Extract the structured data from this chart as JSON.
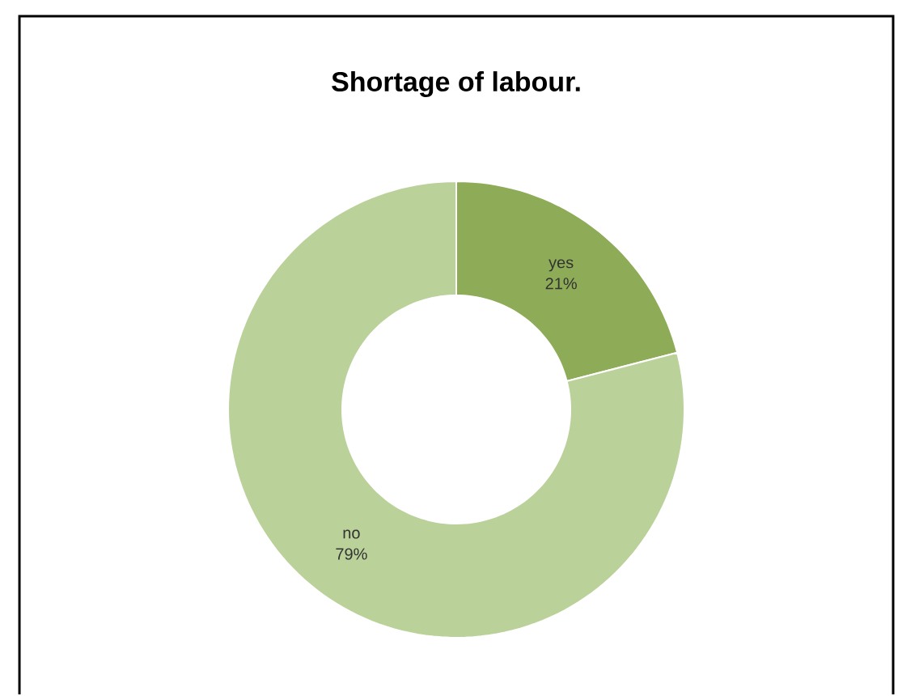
{
  "chart_data": {
    "type": "donut",
    "title": "Shortage of labour.",
    "categories": [
      "yes",
      "no"
    ],
    "values": [
      21,
      79
    ],
    "value_labels": [
      "21%",
      "79%"
    ],
    "colors": [
      "#8eab57",
      "#bad29a"
    ]
  }
}
